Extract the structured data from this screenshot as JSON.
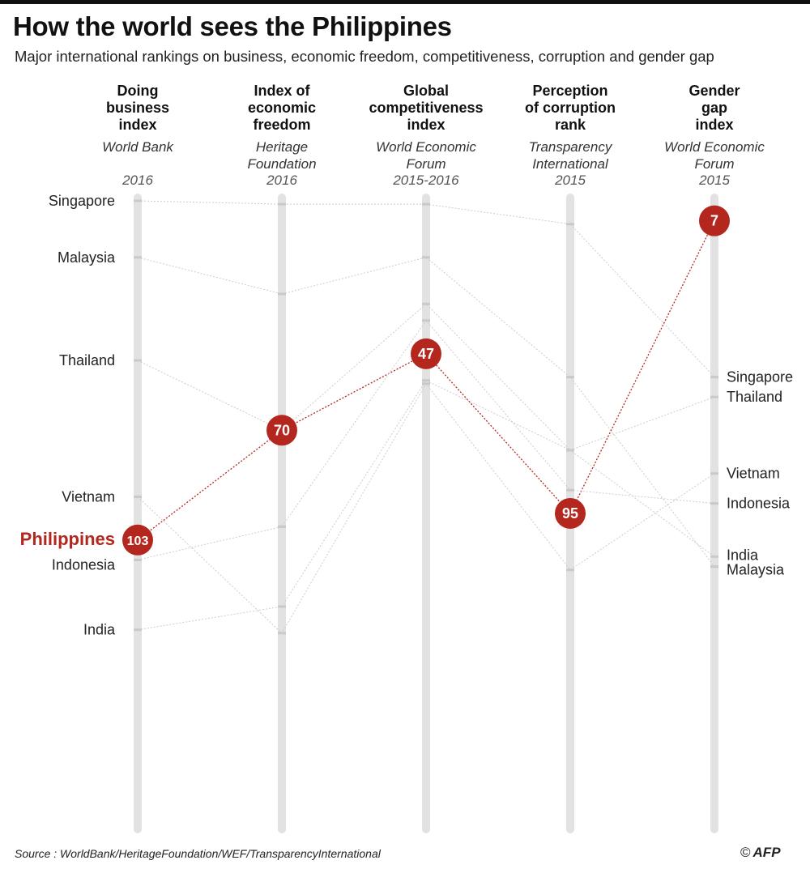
{
  "title": "How the world sees the Philippines",
  "subtitle": "Major international rankings on business, economic freedom, competitiveness, corruption and gender gap",
  "source": "Source : WorldBank/HeritageFoundation/WEF/TransparencyInternational",
  "credit": {
    "copyright": "©",
    "brand": "AFP"
  },
  "colors": {
    "highlight": "#b4271f",
    "axis": "#e2e2e2",
    "tick": "#c9c9c9",
    "connector": "#cccccc",
    "text": "#222222"
  },
  "chart_data": {
    "type": "line",
    "title": "How the world sees the Philippines",
    "axes": [
      {
        "title": [
          "Doing",
          "business",
          "index"
        ],
        "source": [
          "World Bank"
        ],
        "year": "2016"
      },
      {
        "title": [
          "Index of",
          "economic",
          "freedom"
        ],
        "source": [
          "Heritage",
          "Foundation"
        ],
        "year": "2016"
      },
      {
        "title": [
          "Global",
          "competitiveness",
          "index"
        ],
        "source": [
          "World Economic",
          "Forum"
        ],
        "year": "2015-2016"
      },
      {
        "title": [
          "Perception",
          "of corruption",
          "rank"
        ],
        "source": [
          "Transparency",
          "International"
        ],
        "year": "2015"
      },
      {
        "title": [
          "Gender",
          "gap",
          "index"
        ],
        "source": [
          "World Economic",
          "Forum"
        ],
        "year": "2015"
      }
    ],
    "rank_range": [
      1,
      190
    ],
    "highlight": "Philippines",
    "left_labels": [
      "Singapore",
      "Malaysia",
      "Thailand",
      "Vietnam",
      "Philippines",
      "Indonesia",
      "India"
    ],
    "right_labels": [
      "Singapore",
      "Thailand",
      "Vietnam",
      "Indonesia",
      "India",
      "Malaysia"
    ],
    "series": [
      {
        "name": "Singapore",
        "values": [
          1,
          2,
          2,
          8,
          54
        ]
      },
      {
        "name": "Malaysia",
        "values": [
          18,
          29,
          18,
          54,
          111
        ]
      },
      {
        "name": "Thailand",
        "values": [
          49,
          70,
          32,
          76,
          60
        ]
      },
      {
        "name": "Vietnam",
        "values": [
          90,
          131,
          56,
          112,
          83
        ]
      },
      {
        "name": "Philippines",
        "values": [
          103,
          70,
          47,
          95,
          7
        ]
      },
      {
        "name": "Indonesia",
        "values": [
          109,
          99,
          37,
          88,
          92
        ]
      },
      {
        "name": "India",
        "values": [
          130,
          123,
          55,
          76,
          108
        ]
      }
    ]
  }
}
